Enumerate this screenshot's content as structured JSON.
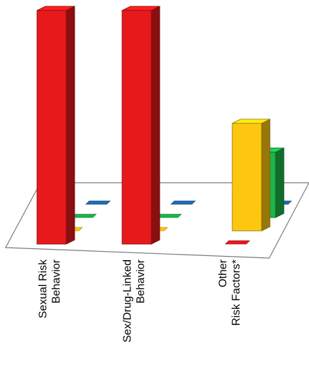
{
  "chart_data": {
    "type": "bar",
    "style": "3d-grouped",
    "title": "",
    "xlabel": "",
    "ylabel": "",
    "legend": "none",
    "grid": false,
    "categories": [
      [
        "Sexual Risk",
        "Behavior"
      ],
      [
        "Sex/Drug-Linked",
        "Behavior"
      ],
      [
        "Other",
        "Risk Factors*"
      ]
    ],
    "series": [
      {
        "color": "#e8191b",
        "values": [
          100,
          100,
          0
        ]
      },
      {
        "color": "#fdc70f",
        "values": [
          0,
          0,
          46
        ]
      },
      {
        "color": "#1db54a",
        "values": [
          0,
          0,
          28
        ]
      },
      {
        "color": "#1f6cb4",
        "values": [
          0,
          0,
          0
        ]
      }
    ],
    "ylim": [
      0,
      100
    ]
  }
}
